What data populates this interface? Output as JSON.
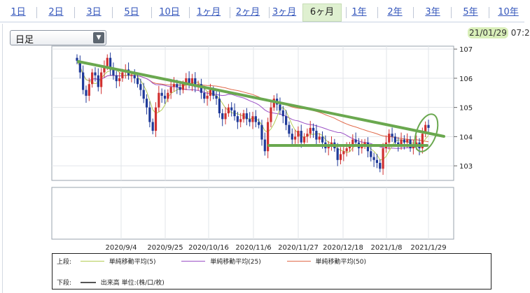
{
  "tabs": [
    {
      "label": "1日"
    },
    {
      "label": "2日"
    },
    {
      "label": "3日"
    },
    {
      "label": "5日"
    },
    {
      "label": "10日"
    },
    {
      "label": "1ヶ月"
    },
    {
      "label": "2ヶ月"
    },
    {
      "label": "3ヶ月"
    },
    {
      "label": "6ヶ月",
      "active": true
    },
    {
      "label": "1年"
    },
    {
      "label": "2年"
    },
    {
      "label": "3年"
    },
    {
      "label": "5年"
    },
    {
      "label": "10年"
    }
  ],
  "period_select": {
    "value": "日足"
  },
  "timestamp": {
    "date": "21/01/29",
    "time": "07:2"
  },
  "legend": {
    "upper_label": "上段:",
    "lower_label": "下段:",
    "ma5": "単純移動平均(5)",
    "ma25": "単純移動平均(25)",
    "ma50": "単純移動平均(50)",
    "volume": "出来高 単位:(株/口/枚)"
  },
  "colors": {
    "up": "#d03030",
    "down": "#1f3a99",
    "ma5": "#b4cc55",
    "ma25": "#9a4fc5",
    "ma50": "#e06a4a",
    "annotation": "#6aa84f",
    "selected_tab_bg": "#dff0d0"
  },
  "chart_data": {
    "type": "candlestick",
    "x_tick_labels": [
      "2020/9/4",
      "2020/9/25",
      "2020/10/16",
      "2020/11/6",
      "2020/11/27",
      "2020/12/18",
      "2021/1/8",
      "2021/1/29"
    ],
    "y_tick_labels": [
      "107",
      "106",
      "105",
      "104",
      "103"
    ],
    "ylim": [
      102.5,
      107.1
    ],
    "close": [
      106.6,
      106.2,
      105.6,
      105.4,
      105.8,
      106.2,
      106.1,
      105.7,
      106.2,
      106.4,
      106.7,
      106.3,
      106.1,
      105.9,
      106.0,
      106.2,
      106.3,
      106.1,
      106.1,
      106.0,
      105.8,
      105.6,
      105.3,
      105.0,
      104.5,
      104.2,
      105.0,
      105.5,
      105.4,
      105.3,
      105.5,
      105.7,
      105.8,
      105.7,
      105.6,
      105.8,
      106.0,
      105.8,
      106.0,
      105.7,
      105.8,
      105.5,
      105.3,
      105.4,
      105.6,
      105.4,
      105.3,
      104.8,
      104.6,
      104.8,
      105.0,
      104.9,
      104.7,
      104.5,
      104.6,
      104.8,
      104.6,
      104.5,
      104.7,
      104.5,
      104.4,
      103.9,
      103.5,
      104.5,
      105.0,
      105.3,
      105.1,
      104.9,
      104.7,
      104.4,
      104.1,
      103.9,
      104.0,
      104.2,
      103.8,
      104.0,
      104.1,
      104.3,
      104.2,
      103.9,
      104.0,
      103.8,
      103.6,
      103.7,
      103.8,
      103.6,
      103.2,
      103.4,
      103.5,
      103.6,
      103.7,
      103.9,
      103.8,
      103.6,
      103.7,
      103.8,
      103.5,
      103.3,
      103.2,
      103.1,
      102.9,
      103.6,
      103.8,
      104.1,
      104.0,
      103.8,
      103.7,
      103.9,
      103.8,
      103.9,
      103.6,
      103.7,
      103.8,
      103.6,
      104.1,
      104.4,
      104.3
    ]
  }
}
